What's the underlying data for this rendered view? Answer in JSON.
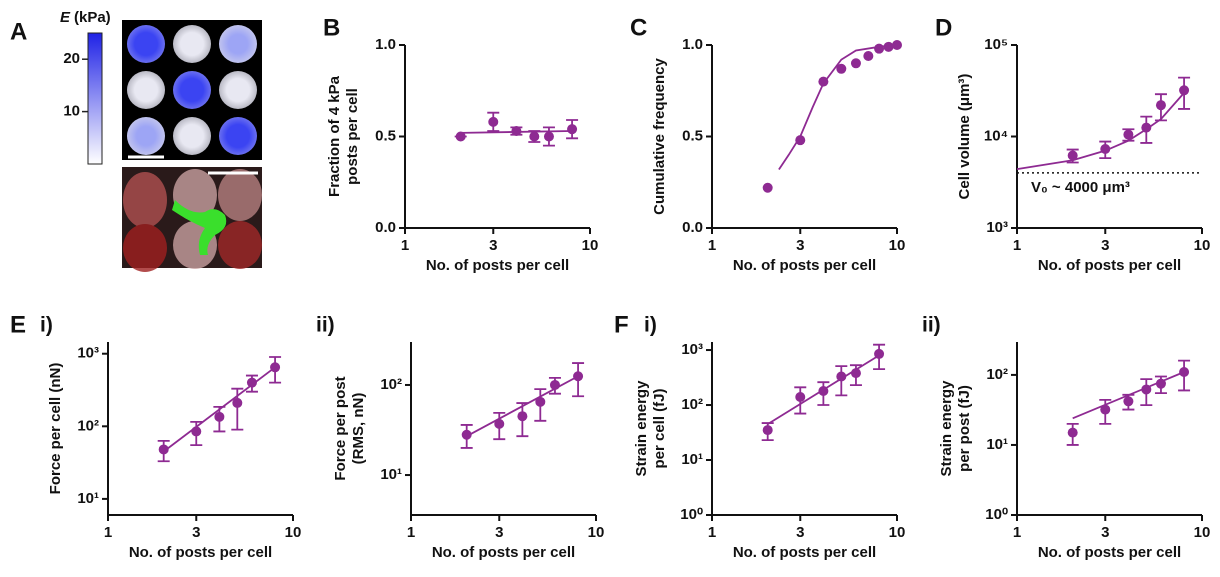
{
  "panel_a": {
    "label": "A",
    "colorbar_symbol": "E",
    "colorbar_unit": "(kPa)",
    "colorbar_lim": [
      0,
      25
    ],
    "colorbar_ticks": [
      10,
      20
    ]
  },
  "chart_data": [
    {
      "type": "scatter",
      "panel": "B",
      "ylabel": [
        "Fraction of 4 kPa",
        "posts per cell"
      ],
      "xlabel": "No. of posts per cell",
      "color": "#8e2a92",
      "xscale": "log",
      "xlim": [
        1,
        10
      ],
      "xticks": [
        1,
        3,
        10
      ],
      "yscale": "linear",
      "ylim": [
        0,
        1
      ],
      "yticks": [
        {
          "value": 0,
          "label": "0.0"
        },
        0.5,
        {
          "value": 1,
          "label": "1.0"
        }
      ],
      "x": [
        2,
        3,
        4,
        5,
        6,
        8
      ],
      "values": [
        0.5,
        0.58,
        0.53,
        0.5,
        0.5,
        0.54
      ],
      "errors": [
        0,
        0.05,
        0.02,
        0.03,
        0.05,
        0.05
      ],
      "fit_x": [
        2,
        8
      ],
      "fit_values": [
        0.52,
        0.53
      ]
    },
    {
      "type": "scatter",
      "panel": "C",
      "ylabel": [
        "Cumulative frequency"
      ],
      "xlabel": "No. of posts per cell",
      "color": "#8e2a92",
      "xscale": "log",
      "xlim": [
        1,
        10
      ],
      "xticks": [
        1,
        3,
        10
      ],
      "yscale": "linear",
      "ylim": [
        0,
        1
      ],
      "yticks": [
        {
          "value": 0,
          "label": "0.0"
        },
        0.5,
        {
          "value": 1,
          "label": "1.0"
        }
      ],
      "x": [
        2,
        3,
        4,
        5,
        6,
        7,
        8,
        9,
        10
      ],
      "values": [
        0.22,
        0.48,
        0.8,
        0.87,
        0.9,
        0.94,
        0.98,
        0.99,
        1.0
      ],
      "fit_x": [
        2.3,
        2.6,
        3,
        3.5,
        4,
        5,
        6,
        8,
        10
      ],
      "fit_values": [
        0.32,
        0.4,
        0.5,
        0.66,
        0.79,
        0.92,
        0.97,
        0.99,
        1.0
      ]
    },
    {
      "type": "scatter",
      "panel": "D",
      "ylabel": [
        "Cell volume (μm³)"
      ],
      "xlabel": "No. of posts per cell",
      "color": "#8e2a92",
      "xscale": "log",
      "xlim": [
        1,
        10
      ],
      "xticks": [
        1,
        3,
        10
      ],
      "yscale": "log",
      "ylim": [
        1000,
        100000
      ],
      "yticks": [
        {
          "value": 1000,
          "label": "10³"
        },
        {
          "value": 10000,
          "label": "10⁴"
        },
        {
          "value": 100000,
          "label": "10⁵"
        }
      ],
      "x": [
        2,
        3,
        4,
        5,
        6,
        8
      ],
      "values": [
        6200,
        7300,
        10500,
        12500,
        22000,
        32000
      ],
      "errors": [
        1000,
        1500,
        1500,
        4000,
        7000,
        12000
      ],
      "fit_x": [
        1,
        2,
        3,
        4,
        5,
        6,
        8
      ],
      "fit_values": [
        4400,
        5500,
        7000,
        9000,
        12000,
        15500,
        30000
      ],
      "threshold": 4000,
      "annotation": "V₀ ~ 4000 μm³"
    },
    {
      "type": "scatter",
      "panel": "E",
      "sub": "i)",
      "ylabel": [
        "Force per cell (nN)"
      ],
      "xlabel": "No. of posts per cell",
      "color": "#8e2a92",
      "xscale": "log",
      "xlim": [
        1,
        10
      ],
      "xticks": [
        1,
        3,
        10
      ],
      "yscale": "log",
      "ylim": [
        6,
        1450
      ],
      "yticks": [
        {
          "value": 10,
          "label": "10¹"
        },
        {
          "value": 100,
          "label": "10²"
        },
        {
          "value": 1000,
          "label": "10³"
        }
      ],
      "x": [
        2,
        3,
        4,
        5,
        6,
        8
      ],
      "values": [
        48,
        85,
        135,
        210,
        400,
        650
      ],
      "errors": [
        15,
        30,
        50,
        120,
        100,
        250
      ],
      "fit_x": [
        2,
        8
      ],
      "fit_values": [
        45,
        650
      ]
    },
    {
      "type": "scatter",
      "sub": "ii)",
      "ylabel": [
        "Force per post",
        "(RMS, nN)"
      ],
      "xlabel": "No. of posts per cell",
      "color": "#8e2a92",
      "xscale": "log",
      "xlim": [
        1,
        10
      ],
      "xticks": [
        1,
        3,
        10
      ],
      "yscale": "log",
      "ylim": [
        3.6,
        300
      ],
      "yticks": [
        {
          "value": 10,
          "label": "10¹"
        },
        {
          "value": 100,
          "label": "10²"
        }
      ],
      "x": [
        2,
        3,
        4,
        5,
        6,
        8
      ],
      "values": [
        28,
        37,
        45,
        65,
        100,
        125
      ],
      "errors": [
        8,
        12,
        18,
        25,
        20,
        50
      ],
      "fit_x": [
        2,
        8
      ],
      "fit_values": [
        27,
        125
      ]
    },
    {
      "type": "scatter",
      "panel": "F",
      "sub": "i)",
      "ylabel": [
        "Strain energy",
        "per cell (fJ)"
      ],
      "xlabel": "No. of posts per cell",
      "color": "#8e2a92",
      "xscale": "log",
      "xlim": [
        1,
        10
      ],
      "xticks": [
        1,
        3,
        10
      ],
      "yscale": "log",
      "ylim": [
        1,
        1400
      ],
      "yticks": [
        {
          "value": 1,
          "label": "10⁰"
        },
        {
          "value": 10,
          "label": "10¹"
        },
        {
          "value": 100,
          "label": "10²"
        },
        {
          "value": 1000,
          "label": "10³"
        }
      ],
      "x": [
        2,
        3,
        4,
        5,
        6,
        8
      ],
      "values": [
        35,
        140,
        180,
        330,
        380,
        850
      ],
      "errors": [
        12,
        70,
        80,
        180,
        150,
        400
      ],
      "fit_x": [
        2,
        8
      ],
      "fit_values": [
        45,
        800
      ]
    },
    {
      "type": "scatter",
      "sub": "ii)",
      "ylabel": [
        "Strain energy",
        "per post (fJ)"
      ],
      "xlabel": "No. of posts per cell",
      "color": "#8e2a92",
      "xscale": "log",
      "xlim": [
        1,
        10
      ],
      "xticks": [
        1,
        3,
        10
      ],
      "yscale": "log",
      "ylim": [
        1,
        295
      ],
      "yticks": [
        {
          "value": 1,
          "label": "10⁰"
        },
        {
          "value": 10,
          "label": "10¹"
        },
        {
          "value": 100,
          "label": "10²"
        }
      ],
      "x": [
        2,
        3,
        4,
        5,
        6,
        8
      ],
      "values": [
        15,
        32,
        42,
        62,
        75,
        110
      ],
      "errors": [
        5,
        12,
        10,
        25,
        20,
        50
      ],
      "fit_x": [
        2,
        8
      ],
      "fit_values": [
        24,
        110
      ]
    }
  ]
}
